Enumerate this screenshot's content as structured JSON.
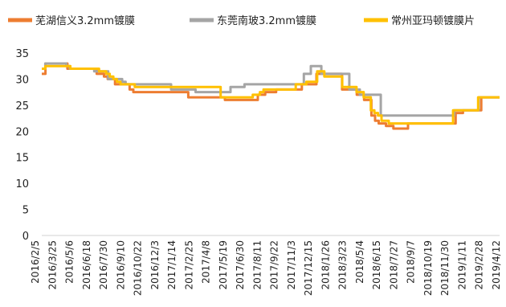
{
  "chart_data": {
    "type": "line",
    "title": "",
    "xlabel": "",
    "ylabel": "",
    "ylim": [
      0,
      35
    ],
    "yticks": [
      0,
      5,
      10,
      15,
      20,
      25,
      30,
      35
    ],
    "grid": false,
    "legend_position": "top",
    "x_tick_labels": [
      "2016/2/5",
      "2016/3/25",
      "2016/5/6",
      "2016/6/18",
      "2016/7/30",
      "2016/9/10",
      "2016/10/22",
      "2016/12/3",
      "2017/1/14",
      "2017/2/25",
      "2017/4/8",
      "2017/5/19",
      "2017/6/30",
      "2017/8/11",
      "2017/9/22",
      "2017/11/3",
      "2017/12/15",
      "2018/1/26",
      "2018/3/23",
      "2018/5/4",
      "2018/6/15",
      "2018/7/27",
      "2018/9/7",
      "2018/10/19",
      "2018/11/30",
      "2019/1/11",
      "2019/2/28",
      "2019/4/12"
    ],
    "series": [
      {
        "name": "芜湖信义3.2mm镀膜",
        "color": "#ED7D31",
        "values": [
          31,
          33,
          33,
          33,
          33,
          33,
          33,
          32,
          32,
          32,
          32,
          32,
          32,
          32,
          32,
          31,
          31,
          30.5,
          30,
          30,
          29,
          29,
          29,
          29,
          28,
          27.5,
          27.5,
          27.5,
          27.5,
          27.5,
          27.5,
          27.5,
          27.5,
          27.5,
          27.5,
          27.5,
          27.5,
          27.5,
          27.5,
          27.5,
          26.5,
          26.5,
          26.5,
          26.5,
          26.5,
          26.5,
          26.5,
          26.5,
          26.5,
          26.5,
          26,
          26,
          26,
          26,
          26,
          26,
          26,
          26,
          26,
          27,
          27,
          27.5,
          27.5,
          27.5,
          28,
          28,
          28,
          28,
          28,
          28,
          28,
          29,
          29,
          29,
          29,
          31,
          31,
          31,
          31,
          31,
          31,
          31,
          28,
          28,
          28,
          28,
          27,
          27,
          26,
          26,
          23,
          22,
          21.5,
          21.5,
          21,
          21,
          20.5,
          20.5,
          20.5,
          20.5,
          21.5,
          21.5,
          21.5,
          21.5,
          21.5,
          21.5,
          21.5,
          21.5,
          21.5,
          21.5,
          21.5,
          21.5,
          21.5,
          23.5,
          23.5,
          24,
          24,
          24,
          24,
          24,
          26.5,
          26.5,
          26.5,
          26.5,
          26.5,
          26.5
        ]
      },
      {
        "name": "东莞南玻3.2mm镀膜",
        "color": "#A5A5A5",
        "values": [
          32,
          33,
          33,
          33,
          33,
          33,
          33,
          32.5,
          32,
          32,
          32,
          32,
          32,
          32,
          32,
          31.5,
          31.5,
          31.5,
          31.5,
          30,
          30,
          30,
          30,
          29.5,
          29,
          29,
          29,
          29,
          29,
          29,
          29,
          29,
          29,
          29,
          29,
          29,
          29,
          28,
          28,
          28,
          28,
          28,
          28,
          28,
          27.5,
          27.5,
          27.5,
          27.5,
          27.5,
          27.5,
          27.5,
          27.5,
          27.5,
          27.5,
          28.5,
          28.5,
          28.5,
          28.5,
          29,
          29,
          29,
          29,
          29,
          29,
          29,
          29,
          29,
          29,
          29,
          29,
          29,
          29,
          29,
          29,
          29,
          31,
          31,
          32.5,
          32.5,
          32.5,
          31,
          31,
          31,
          31,
          31,
          31,
          31,
          31,
          28,
          28,
          28,
          27,
          27,
          27,
          27,
          27,
          27,
          23,
          23,
          23,
          23,
          23,
          23,
          23,
          23,
          23,
          23,
          23,
          23,
          23,
          23,
          23,
          23,
          23,
          23,
          23,
          23,
          23,
          24,
          24,
          24,
          24,
          24,
          24,
          24,
          26.5,
          26.5,
          26.5,
          26.5,
          26.5,
          26.5,
          26.5
        ]
      },
      {
        "name": "常州亚玛顿镀膜片",
        "color": "#FFC000",
        "values": [
          32,
          32.5,
          32.5,
          32.5,
          32.5,
          32.5,
          32.5,
          32.5,
          32,
          32,
          32,
          32,
          32,
          32,
          32,
          32,
          31.5,
          31.5,
          31,
          30.5,
          30,
          29.5,
          29,
          29,
          29,
          29,
          28.5,
          28.5,
          28.5,
          28.5,
          28.5,
          28.5,
          28.5,
          28.5,
          28.5,
          28.5,
          28.5,
          28.5,
          28.5,
          28.5,
          28.5,
          28.5,
          28.5,
          28.5,
          28.5,
          28.5,
          28.5,
          28.5,
          28.5,
          28.5,
          26.5,
          26.5,
          26.5,
          26.5,
          26.5,
          26.5,
          26.5,
          26.5,
          26.5,
          27,
          27,
          27.5,
          28,
          28,
          28,
          28,
          28,
          28,
          28,
          28,
          28,
          29,
          29,
          29,
          29.5,
          29.5,
          29.5,
          31.5,
          31.5,
          30.5,
          30.5,
          30.5,
          30.5,
          30.5,
          28.5,
          28.5,
          28.5,
          28.5,
          27.5,
          27.5,
          26.5,
          26.5,
          24,
          23.5,
          23,
          22,
          22,
          21.5,
          21.5,
          21.5,
          21.5,
          21.5,
          21.5,
          21.5,
          21.5,
          21.5,
          21.5,
          21.5,
          21.5,
          21.5,
          21.5,
          21.5,
          21.5,
          21.5,
          21.5,
          24,
          24,
          24,
          24,
          24,
          24,
          24,
          26.5,
          26.5,
          26.5,
          26.5,
          26.5,
          26.5,
          26.5
        ]
      }
    ]
  }
}
